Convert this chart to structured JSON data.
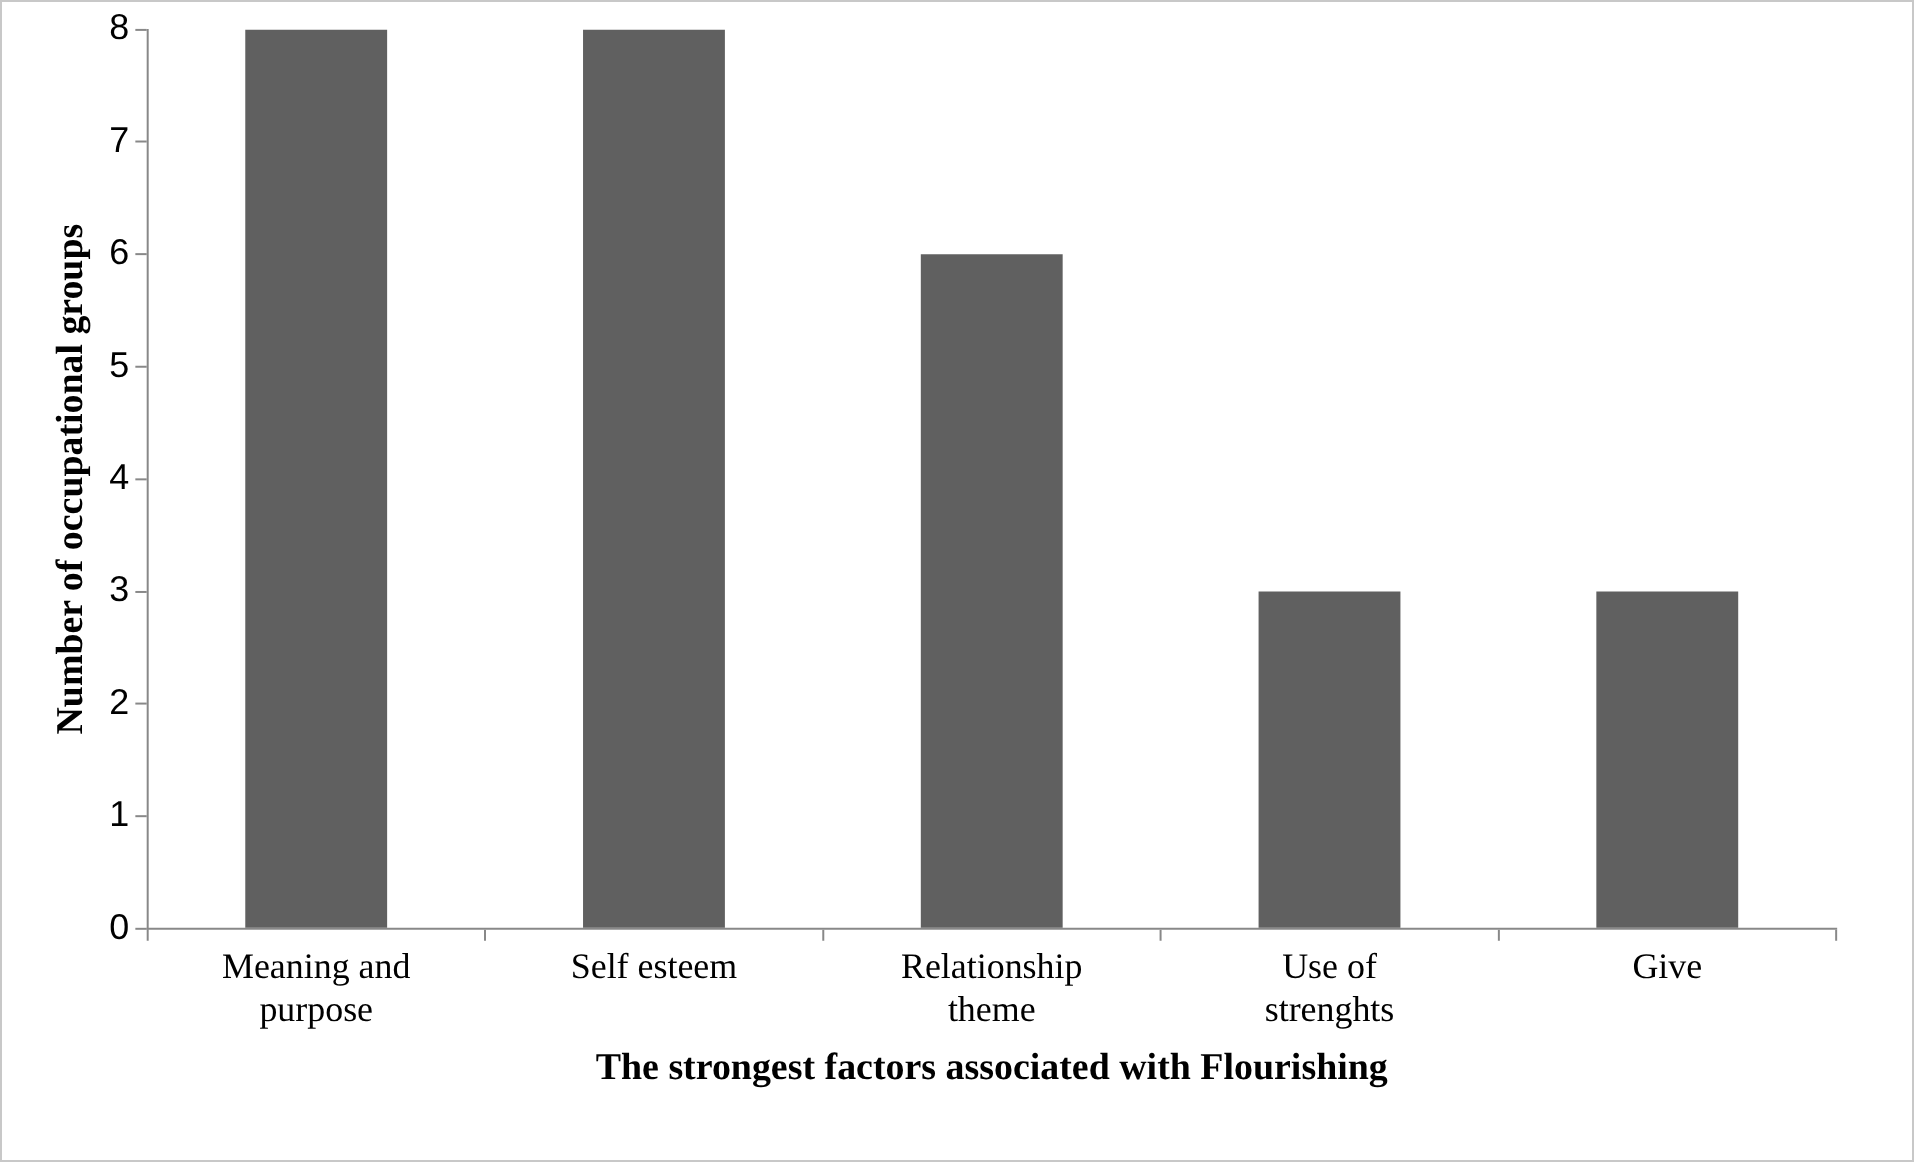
{
  "chart_data": {
    "type": "bar",
    "xlabel": "The strongest factors associated with Flourishing",
    "ylabel": "Number of occupational groups",
    "categories": [
      "Meaning and purpose",
      "Self esteem",
      "Relationship theme",
      "Use of strenghts",
      "Give"
    ],
    "values": [
      8,
      8,
      6,
      3,
      3
    ],
    "color": "#606060",
    "ylim": [
      0,
      8
    ],
    "yticks": [
      0,
      1,
      2,
      3,
      4,
      5,
      6,
      7,
      8
    ],
    "grid": false,
    "legend": false
  }
}
